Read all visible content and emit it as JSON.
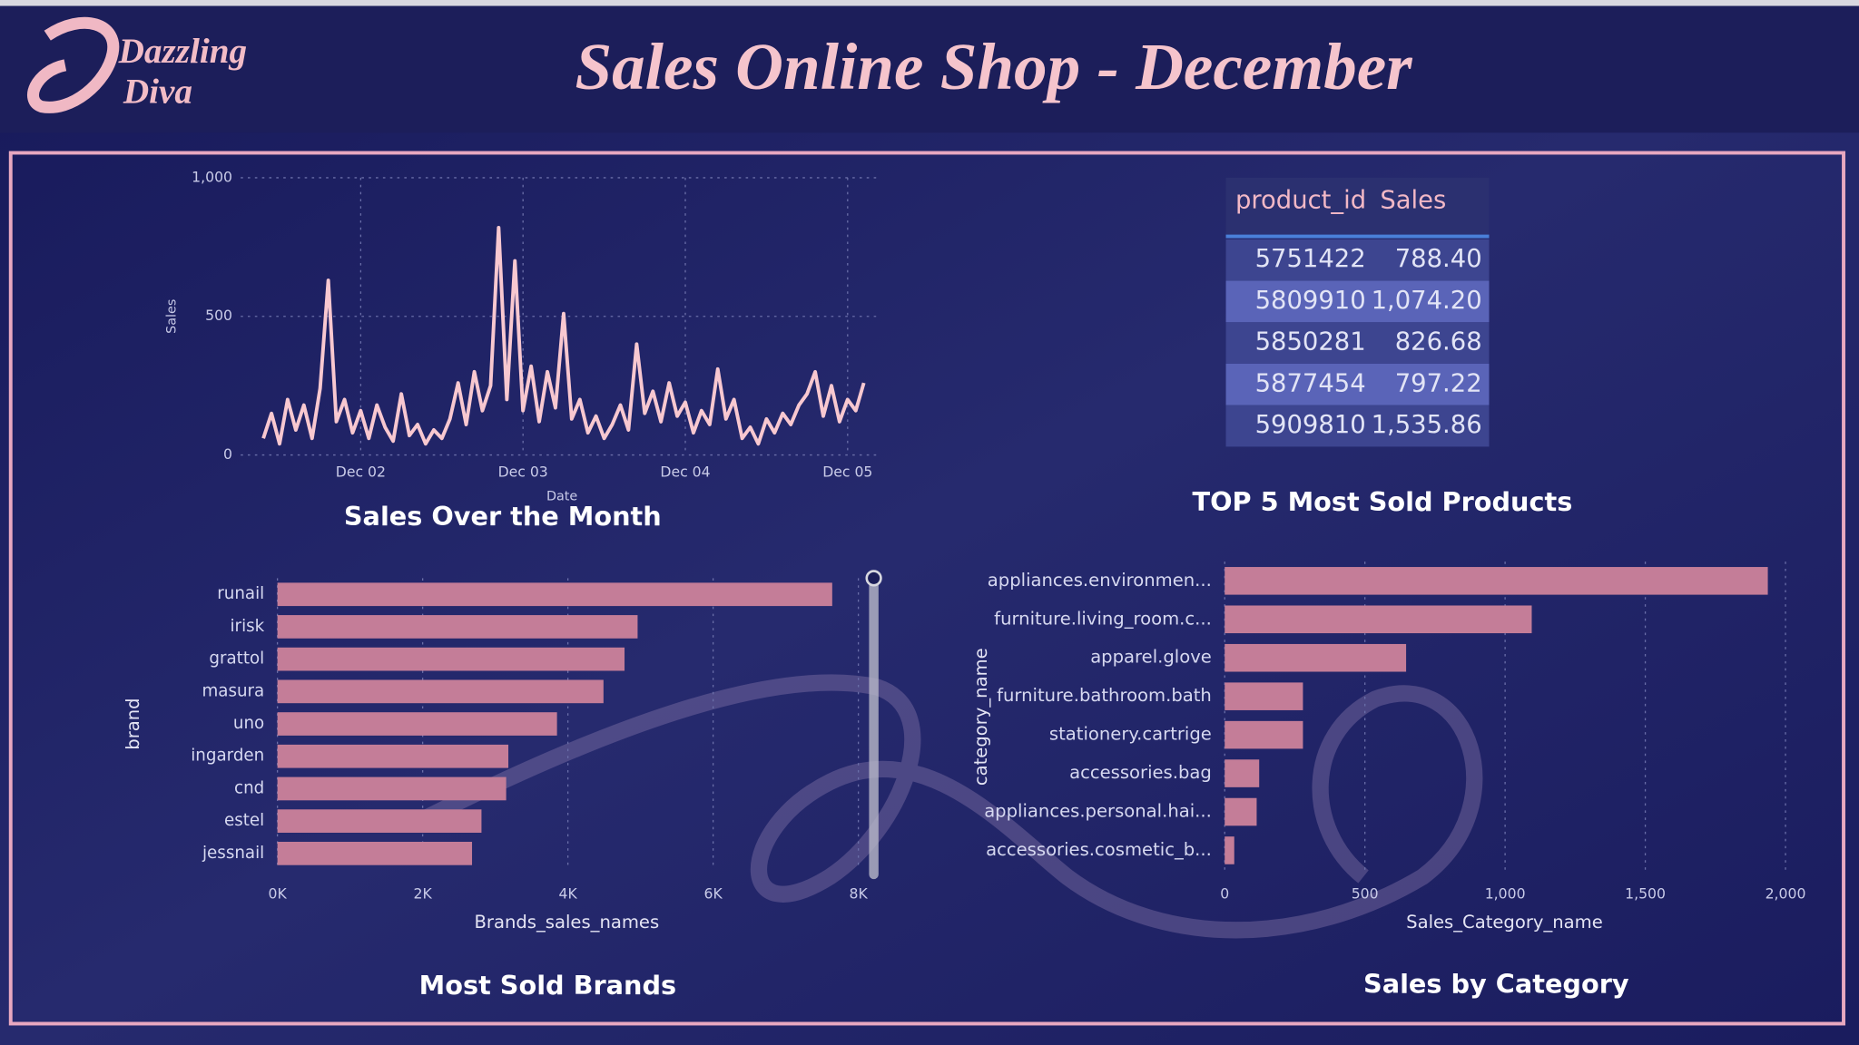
{
  "header": {
    "logo_line1": "Dazzling",
    "logo_line2": "Diva",
    "title": "Sales Online Shop - December"
  },
  "chart_data": [
    {
      "type": "line",
      "title": "Sales Over the Month",
      "xlabel": "Date",
      "ylabel": "Sales",
      "color": "#f8c8d0",
      "grid": true,
      "x": [
        1.4,
        1.45,
        1.5,
        1.55,
        1.6,
        1.65,
        1.7,
        1.75,
        1.8,
        1.85,
        1.9,
        1.95,
        2.0,
        2.05,
        2.1,
        2.15,
        2.2,
        2.25,
        2.3,
        2.35,
        2.4,
        2.45,
        2.5,
        2.55,
        2.6,
        2.65,
        2.7,
        2.75,
        2.8,
        2.85,
        2.9,
        2.95,
        3.0,
        3.05,
        3.1,
        3.15,
        3.2,
        3.25,
        3.3,
        3.35,
        3.4,
        3.45,
        3.5,
        3.55,
        3.6,
        3.65,
        3.7,
        3.75,
        3.8,
        3.85,
        3.9,
        3.95,
        4.0,
        4.05,
        4.1,
        4.15,
        4.2,
        4.25,
        4.3,
        4.35,
        4.4,
        4.45,
        4.5,
        4.55,
        4.6,
        4.65,
        4.7,
        4.75,
        4.8,
        4.85,
        4.9,
        4.95,
        5.0,
        5.05,
        5.1
      ],
      "values": [
        60,
        150,
        40,
        200,
        90,
        180,
        60,
        240,
        630,
        120,
        200,
        80,
        160,
        60,
        180,
        100,
        50,
        220,
        70,
        110,
        40,
        90,
        60,
        130,
        260,
        110,
        300,
        160,
        250,
        820,
        200,
        700,
        160,
        320,
        120,
        300,
        170,
        510,
        130,
        200,
        80,
        140,
        60,
        110,
        180,
        90,
        400,
        150,
        230,
        120,
        260,
        140,
        190,
        80,
        160,
        110,
        310,
        130,
        200,
        60,
        100,
        40,
        130,
        80,
        150,
        110,
        180,
        220,
        300,
        140,
        250,
        120,
        200,
        160,
        260
      ],
      "xlim": [
        1.37,
        5.11
      ],
      "xticks": [
        {
          "value": 2,
          "label": "Dec 02"
        },
        {
          "value": 3,
          "label": "Dec 03"
        },
        {
          "value": 4,
          "label": "Dec 04"
        },
        {
          "value": 5,
          "label": "Dec 05"
        }
      ],
      "ylim": [
        0,
        1000
      ],
      "yticks": [
        0,
        500,
        {
          "value": 1000,
          "label": "1,000"
        }
      ]
    },
    {
      "type": "table",
      "title": "TOP 5 Most Sold Products",
      "columns": [
        "product_id",
        "Sales"
      ],
      "rows": [
        [
          "5751422",
          "788.40"
        ],
        [
          "5809910",
          "1,074.20"
        ],
        [
          "5850281",
          "826.68"
        ],
        [
          "5877454",
          "797.22"
        ],
        [
          "5909810",
          "1,535.86"
        ]
      ]
    },
    {
      "type": "hbar",
      "title": "Most Sold Brands",
      "xlabel": "Brands_sales_names",
      "ylabel": "brand",
      "color": "#c47d98",
      "grid": true,
      "categories": [
        "runail",
        "irisk",
        "grattol",
        "masura",
        "uno",
        "ingarden",
        "cnd",
        "estel",
        "jessnail"
      ],
      "values": [
        7640,
        4960,
        4780,
        4490,
        3850,
        3180,
        3150,
        2810,
        2680
      ],
      "xlim": [
        0,
        8000
      ],
      "xticks": [
        {
          "value": 0,
          "label": "0K"
        },
        {
          "value": 2000,
          "label": "2K"
        },
        {
          "value": 4000,
          "label": "4K"
        },
        {
          "value": 6000,
          "label": "6K"
        },
        {
          "value": 8000,
          "label": "8K"
        }
      ]
    },
    {
      "type": "hbar",
      "title": "Sales by Category",
      "xlabel": "Sales_Category_name",
      "ylabel": "category_name",
      "color": "#c47d98",
      "grid": true,
      "categories": [
        "appliances.environmen...",
        "furniture.living_room.c...",
        "apparel.glove",
        "furniture.bathroom.bath",
        "stationery.cartrige",
        "accessories.bag",
        "appliances.personal.hai...",
        "accessories.cosmetic_b..."
      ],
      "values": [
        1937,
        1095,
        647,
        279,
        279,
        123,
        114,
        34
      ],
      "xlim": [
        0,
        2000
      ],
      "xticks": [
        0,
        500,
        {
          "value": 1000,
          "label": "1,000"
        },
        {
          "value": 1500,
          "label": "1,500"
        },
        {
          "value": 2000,
          "label": "2,000"
        }
      ]
    }
  ]
}
